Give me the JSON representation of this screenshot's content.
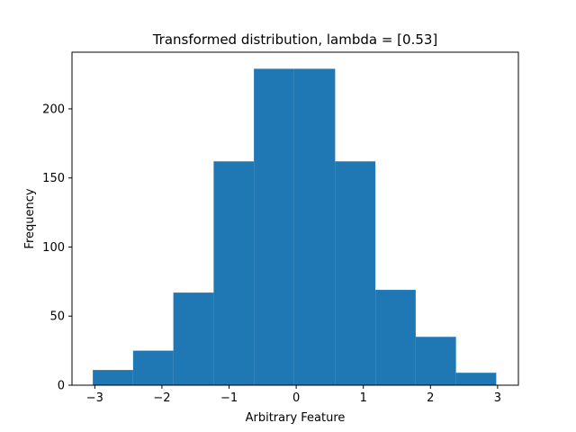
{
  "chart_data": {
    "type": "bar",
    "title": "Transformed distribution, lambda = [0.53]",
    "xlabel": "Arbitrary Feature",
    "ylabel": "Frequency",
    "xlim": [
      -3.34,
      3.31
    ],
    "ylim": [
      0,
      241
    ],
    "xticks": [
      -3,
      -2,
      -1,
      0,
      1,
      2,
      3
    ],
    "xtick_labels": [
      "−3",
      "−2",
      "−1",
      "0",
      "1",
      "2",
      "3"
    ],
    "yticks": [
      0,
      50,
      100,
      150,
      200
    ],
    "ytick_labels": [
      "0",
      "50",
      "100",
      "150",
      "200"
    ],
    "bin_edges": [
      -3.03,
      -2.43,
      -1.83,
      -1.23,
      -0.63,
      -0.03,
      0.58,
      1.18,
      1.78,
      2.38,
      2.98
    ],
    "counts": [
      11,
      25,
      67,
      162,
      229,
      229,
      162,
      69,
      35,
      9
    ],
    "bar_color": "#1f77b4",
    "grid": false
  }
}
